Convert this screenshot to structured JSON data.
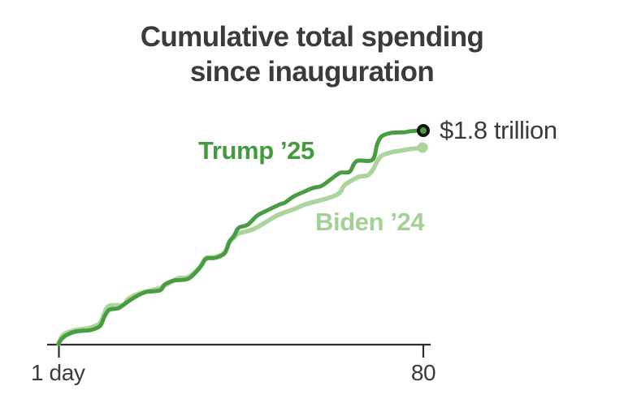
{
  "title": {
    "line1": "Cumulative total spending",
    "line2": "since inauguration"
  },
  "annotation": {
    "label": "$1.8 trillion"
  },
  "axis": {
    "tick_first": "1 day",
    "tick_last": "80"
  },
  "colors": {
    "trump_line": "#4a9c42",
    "biden_line": "#abd59d",
    "trump_label": "#449b3e",
    "biden_label": "#a3d094",
    "axis": "#2d2d2d",
    "text": "#3b3b3b",
    "dot_ring": "#141414"
  },
  "chart_data": {
    "type": "line",
    "title": "Cumulative total spending since inauguration",
    "xlabel": "",
    "ylabel": "",
    "unit": "trillion USD",
    "x_ticks": [
      "1 day",
      "80"
    ],
    "x_range": [
      1,
      80
    ],
    "y_range": [
      0,
      1.8
    ],
    "grid": false,
    "legend_position": "inline-labels",
    "annotation": "$1.8 trillion",
    "series": [
      {
        "name": "Trump ’25",
        "color": "#4a9c42",
        "end_marker": "ring-dot",
        "points": [
          [
            1,
            0.007
          ],
          [
            2,
            0.061
          ],
          [
            4,
            0.102
          ],
          [
            6,
            0.116
          ],
          [
            8,
            0.123
          ],
          [
            10,
            0.157
          ],
          [
            11,
            0.239
          ],
          [
            12,
            0.293
          ],
          [
            14,
            0.307
          ],
          [
            16,
            0.361
          ],
          [
            18,
            0.409
          ],
          [
            20,
            0.443
          ],
          [
            23,
            0.457
          ],
          [
            24,
            0.505
          ],
          [
            26,
            0.539
          ],
          [
            29,
            0.552
          ],
          [
            31,
            0.62
          ],
          [
            32,
            0.668
          ],
          [
            33,
            0.723
          ],
          [
            35,
            0.73
          ],
          [
            37,
            0.77
          ],
          [
            38,
            0.866
          ],
          [
            39,
            0.914
          ],
          [
            40,
            0.982
          ],
          [
            42,
            1.009
          ],
          [
            44,
            1.084
          ],
          [
            46,
            1.125
          ],
          [
            49,
            1.18
          ],
          [
            50,
            1.193
          ],
          [
            52,
            1.248
          ],
          [
            54,
            1.282
          ],
          [
            56,
            1.316
          ],
          [
            58,
            1.336
          ],
          [
            60,
            1.391
          ],
          [
            62,
            1.445
          ],
          [
            64,
            1.452
          ],
          [
            65,
            1.52
          ],
          [
            66,
            1.548
          ],
          [
            69,
            1.555
          ],
          [
            70,
            1.684
          ],
          [
            71,
            1.752
          ],
          [
            73,
            1.78
          ],
          [
            76,
            1.786
          ],
          [
            77,
            1.793
          ],
          [
            79,
            1.8
          ],
          [
            80,
            1.8
          ]
        ]
      },
      {
        "name": "Biden ’24",
        "color": "#abd59d",
        "end_marker": "dot",
        "points": [
          [
            1,
            0.007
          ],
          [
            2,
            0.082
          ],
          [
            4,
            0.116
          ],
          [
            6,
            0.13
          ],
          [
            8,
            0.143
          ],
          [
            10,
            0.184
          ],
          [
            11,
            0.273
          ],
          [
            12,
            0.327
          ],
          [
            15,
            0.334
          ],
          [
            16,
            0.382
          ],
          [
            18,
            0.423
          ],
          [
            21,
            0.457
          ],
          [
            23,
            0.477
          ],
          [
            25,
            0.518
          ],
          [
            27,
            0.559
          ],
          [
            29,
            0.566
          ],
          [
            31,
            0.627
          ],
          [
            32,
            0.675
          ],
          [
            33,
            0.73
          ],
          [
            35,
            0.736
          ],
          [
            37,
            0.777
          ],
          [
            38,
            0.859
          ],
          [
            39,
            0.9
          ],
          [
            40,
            0.934
          ],
          [
            43,
            0.968
          ],
          [
            45,
            1.009
          ],
          [
            47,
            1.057
          ],
          [
            49,
            1.098
          ],
          [
            52,
            1.139
          ],
          [
            54,
            1.173
          ],
          [
            57,
            1.207
          ],
          [
            59,
            1.227
          ],
          [
            61,
            1.255
          ],
          [
            62,
            1.282
          ],
          [
            63,
            1.343
          ],
          [
            65,
            1.391
          ],
          [
            66,
            1.411
          ],
          [
            68,
            1.425
          ],
          [
            69,
            1.466
          ],
          [
            70,
            1.541
          ],
          [
            71,
            1.589
          ],
          [
            73,
            1.616
          ],
          [
            75,
            1.63
          ],
          [
            77,
            1.643
          ],
          [
            80,
            1.657
          ]
        ]
      }
    ]
  }
}
